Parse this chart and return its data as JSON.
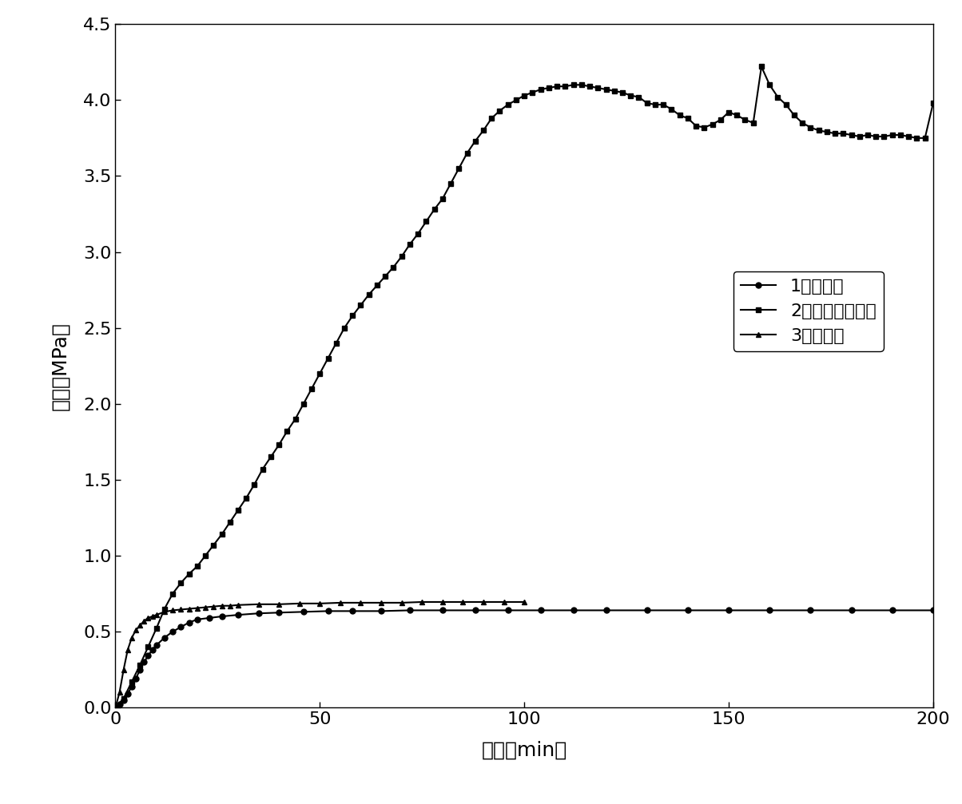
{
  "series1_label": "1正向驱替",
  "series2_label": "2污染后正向驱替",
  "series3_label": "3反向驱替",
  "series1_x": [
    0,
    1,
    2,
    3,
    4,
    5,
    6,
    7,
    8,
    9,
    10,
    12,
    14,
    16,
    18,
    20,
    23,
    26,
    30,
    35,
    40,
    46,
    52,
    58,
    65,
    72,
    80,
    88,
    96,
    104,
    112,
    120,
    130,
    140,
    150,
    160,
    170,
    180,
    190,
    200
  ],
  "series1_y": [
    0,
    0.02,
    0.05,
    0.09,
    0.14,
    0.19,
    0.25,
    0.3,
    0.34,
    0.38,
    0.41,
    0.46,
    0.5,
    0.53,
    0.56,
    0.58,
    0.59,
    0.6,
    0.61,
    0.62,
    0.625,
    0.63,
    0.635,
    0.635,
    0.635,
    0.64,
    0.64,
    0.64,
    0.64,
    0.64,
    0.64,
    0.64,
    0.64,
    0.64,
    0.64,
    0.64,
    0.64,
    0.64,
    0.64,
    0.64
  ],
  "series2_x": [
    0,
    2,
    4,
    6,
    8,
    10,
    12,
    14,
    16,
    18,
    20,
    22,
    24,
    26,
    28,
    30,
    32,
    34,
    36,
    38,
    40,
    42,
    44,
    46,
    48,
    50,
    52,
    54,
    56,
    58,
    60,
    62,
    64,
    66,
    68,
    70,
    72,
    74,
    76,
    78,
    80,
    82,
    84,
    86,
    88,
    90,
    92,
    94,
    96,
    98,
    100,
    102,
    104,
    106,
    108,
    110,
    112,
    114,
    116,
    118,
    120,
    122,
    124,
    126,
    128,
    130,
    132,
    134,
    136,
    138,
    140,
    142,
    144,
    146,
    148,
    150,
    152,
    154,
    156,
    158,
    160,
    162,
    164,
    166,
    168,
    170,
    172,
    174,
    176,
    178,
    180,
    182,
    184,
    186,
    188,
    190,
    192,
    194,
    196,
    198,
    200
  ],
  "series2_y": [
    0,
    0.06,
    0.17,
    0.28,
    0.4,
    0.52,
    0.65,
    0.75,
    0.82,
    0.88,
    0.93,
    1.0,
    1.07,
    1.14,
    1.22,
    1.3,
    1.38,
    1.47,
    1.57,
    1.65,
    1.73,
    1.82,
    1.9,
    2.0,
    2.1,
    2.2,
    2.3,
    2.4,
    2.5,
    2.58,
    2.65,
    2.72,
    2.78,
    2.84,
    2.9,
    2.97,
    3.05,
    3.12,
    3.2,
    3.28,
    3.35,
    3.45,
    3.55,
    3.65,
    3.73,
    3.8,
    3.88,
    3.93,
    3.97,
    4.0,
    4.03,
    4.05,
    4.07,
    4.08,
    4.09,
    4.09,
    4.1,
    4.1,
    4.09,
    4.08,
    4.07,
    4.06,
    4.05,
    4.03,
    4.02,
    3.98,
    3.97,
    3.97,
    3.94,
    3.9,
    3.88,
    3.83,
    3.82,
    3.84,
    3.87,
    3.92,
    3.9,
    3.87,
    3.85,
    4.22,
    4.1,
    4.02,
    3.97,
    3.9,
    3.85,
    3.82,
    3.8,
    3.79,
    3.78,
    3.78,
    3.77,
    3.76,
    3.77,
    3.76,
    3.76,
    3.77,
    3.77,
    3.76,
    3.75,
    3.75,
    3.98
  ],
  "series3_x": [
    0,
    1,
    2,
    3,
    4,
    5,
    6,
    7,
    8,
    9,
    10,
    12,
    14,
    16,
    18,
    20,
    22,
    24,
    26,
    28,
    30,
    35,
    40,
    45,
    50,
    55,
    60,
    65,
    70,
    75,
    80,
    85,
    90,
    95,
    100
  ],
  "series3_y": [
    0,
    0.1,
    0.25,
    0.38,
    0.46,
    0.51,
    0.54,
    0.57,
    0.59,
    0.6,
    0.61,
    0.63,
    0.64,
    0.645,
    0.65,
    0.655,
    0.66,
    0.665,
    0.67,
    0.67,
    0.675,
    0.68,
    0.68,
    0.685,
    0.685,
    0.69,
    0.69,
    0.69,
    0.69,
    0.695,
    0.695,
    0.695,
    0.695,
    0.695,
    0.695
  ],
  "xlabel": "时间（min）",
  "ylabel": "压差（MPa）",
  "xlim": [
    0,
    200
  ],
  "ylim": [
    0,
    4.5
  ],
  "xticks": [
    0,
    50,
    100,
    150,
    200
  ],
  "yticks": [
    0,
    0.5,
    1.0,
    1.5,
    2.0,
    2.5,
    3.0,
    3.5,
    4.0,
    4.5
  ],
  "line_color": "#000000",
  "marker_size": 5,
  "linewidth": 1.5,
  "font_size": 16,
  "label_font_size": 18,
  "tick_font_size": 16
}
